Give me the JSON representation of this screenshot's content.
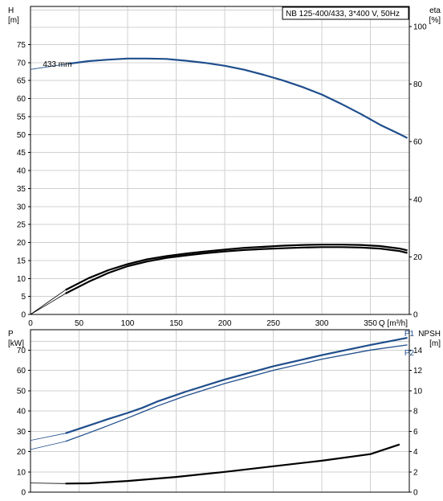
{
  "chart_data": [
    {
      "type": "line",
      "title": "NB 125-400/433, 3*400 V, 50Hz",
      "xlabel": "Q [m³/h]",
      "xlim": [
        0,
        390
      ],
      "xticks": [
        0,
        50,
        100,
        150,
        200,
        250,
        300,
        350
      ],
      "grid": true,
      "left_axis": {
        "label_line1": "H",
        "label_line2": "[m]",
        "ylim": [
          0,
          80
        ],
        "ticks": [
          0,
          5,
          10,
          15,
          20,
          25,
          30,
          35,
          40,
          45,
          50,
          55,
          60,
          65,
          70,
          75
        ]
      },
      "right_axis": {
        "label_line1": "eta",
        "label_line2": "[%]",
        "ylim": [
          0,
          100
        ],
        "ticks": [
          0,
          20,
          40,
          60,
          80,
          100
        ]
      },
      "annotations": [
        {
          "text": "433 mm",
          "x": 40,
          "y": 69.7
        }
      ],
      "series": [
        {
          "axis": "left",
          "color": "#1f4e8c",
          "dashed_start_until": 40,
          "x": [
            0,
            20,
            40,
            60,
            80,
            100,
            120,
            140,
            160,
            180,
            200,
            220,
            240,
            260,
            280,
            300,
            320,
            340,
            360,
            380,
            388
          ],
          "y": [
            68.1,
            68.9,
            69.7,
            70.4,
            70.8,
            71.1,
            71.1,
            71.0,
            70.5,
            69.9,
            69.1,
            68.0,
            66.6,
            65.0,
            63.2,
            61.1,
            58.5,
            55.7,
            52.7,
            50.1,
            49.0
          ]
        },
        {
          "axis": "left",
          "color": "#000000",
          "dashed_start_until": 36,
          "x": [
            0,
            20,
            36,
            60,
            80,
            100,
            120,
            140,
            160,
            180,
            200,
            220,
            240,
            260,
            280,
            300,
            320,
            340,
            360,
            380,
            388
          ],
          "y": [
            0,
            3.8,
            6.8,
            10.1,
            12.3,
            14.0,
            15.3,
            16.2,
            16.9,
            17.5,
            18.0,
            18.5,
            18.8,
            19.1,
            19.3,
            19.4,
            19.4,
            19.3,
            19.0,
            18.3,
            17.8
          ]
        },
        {
          "axis": "left",
          "color": "#000000",
          "dashed_start_until": 36,
          "x": [
            0,
            20,
            36,
            60,
            80,
            100,
            120,
            140,
            160,
            180,
            200,
            220,
            240,
            260,
            280,
            300,
            320,
            340,
            360,
            380,
            388
          ],
          "y": [
            0,
            3.2,
            5.8,
            9.1,
            11.5,
            13.4,
            14.7,
            15.7,
            16.4,
            17.0,
            17.5,
            17.9,
            18.2,
            18.4,
            18.6,
            18.7,
            18.7,
            18.6,
            18.3,
            17.6,
            17.1
          ]
        }
      ]
    },
    {
      "type": "line",
      "xlim": [
        0,
        390
      ],
      "xticks": [
        0,
        50,
        100,
        150,
        200,
        250,
        300,
        350
      ],
      "grid": true,
      "left_axis": {
        "label_line1": "P",
        "label_line2": "[kW]",
        "ylim": [
          0,
          80
        ],
        "ticks": [
          0,
          10,
          20,
          30,
          40,
          50,
          60,
          70
        ]
      },
      "right_axis": {
        "label_line1": "NPSH",
        "label_line2": "[m]",
        "ylim": [
          0,
          16
        ],
        "ticks": [
          0,
          2,
          4,
          6,
          8,
          10,
          12,
          14
        ]
      },
      "series": [
        {
          "name": "P1",
          "axis": "left",
          "color": "#1f4e8c",
          "dashed_start_until": 36,
          "x": [
            0,
            36,
            60,
            80,
            100,
            115,
            130,
            160,
            200,
            250,
            300,
            350,
            388
          ],
          "y": [
            25.5,
            29.0,
            32.8,
            36.0,
            39.0,
            41.5,
            44.5,
            49.5,
            55.5,
            62.0,
            67.5,
            72.5,
            76.0
          ]
        },
        {
          "name": "P2",
          "axis": "left",
          "color": "#1f4e8c",
          "dashed_start_until": 36,
          "x": [
            0,
            36,
            60,
            80,
            100,
            115,
            130,
            160,
            200,
            250,
            300,
            350,
            388
          ],
          "y": [
            21.0,
            25.0,
            29.2,
            32.8,
            36.5,
            39.4,
            42.3,
            47.5,
            53.5,
            60.0,
            65.5,
            70.0,
            72.5
          ]
        },
        {
          "name": "",
          "axis": "right",
          "color": "#000000",
          "dashed_start_until": 36,
          "x": [
            0,
            36,
            60,
            100,
            150,
            200,
            250,
            300,
            350,
            380
          ],
          "y": [
            0.9,
            0.85,
            0.87,
            1.1,
            1.5,
            2.0,
            2.55,
            3.1,
            3.75,
            4.7
          ]
        }
      ],
      "series_labels": [
        {
          "text": "P1",
          "x": 380,
          "y": 78.5
        },
        {
          "text": "P2",
          "x": 380,
          "y": 69.0
        }
      ]
    }
  ]
}
